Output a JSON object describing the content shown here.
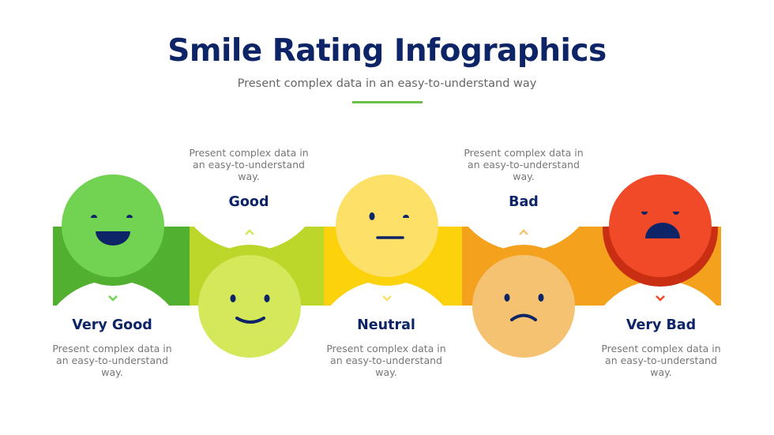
{
  "title": "Smile Rating Infographics",
  "subtitle": "Present complex data in an easy-to-understand way",
  "accent_color": "#6cc04a",
  "ratings": [
    {
      "label": "Very Good",
      "desc": "Present complex data in an easy-to-understand way.",
      "face": "big-smile",
      "color": "#72d352",
      "band_color": "#52b030"
    },
    {
      "label": "Good",
      "desc": "Present complex data in an easy-to-understand way.",
      "face": "smile",
      "color": "#d4e85a",
      "band_color": "#bcd62a"
    },
    {
      "label": "Neutral",
      "desc": "Present complex data in an easy-to-understand way.",
      "face": "neutral",
      "color": "#fde068",
      "band_color": "#fcd20c"
    },
    {
      "label": "Bad",
      "desc": "Present complex data in an easy-to-understand way.",
      "face": "frown",
      "color": "#f5c272",
      "band_color": "#f4a21e"
    },
    {
      "label": "Very Bad",
      "desc": "Present complex data in an easy-to-understand way.",
      "face": "angry",
      "color": "#f04a28",
      "band_color": "#c92e12"
    }
  ]
}
